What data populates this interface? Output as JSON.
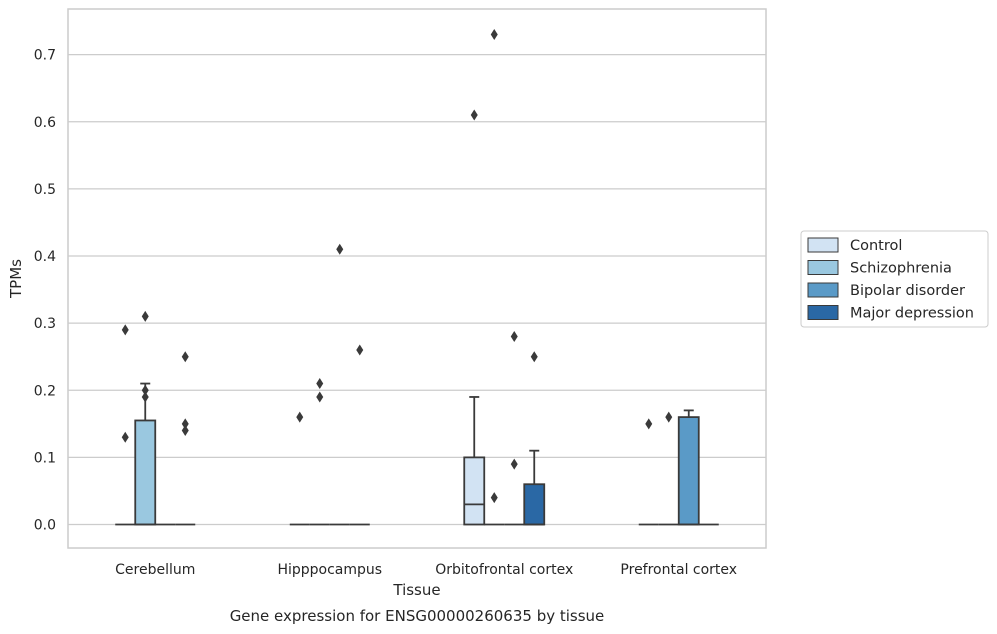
{
  "chart_data": {
    "type": "box",
    "title": "",
    "caption": "Gene expression for ENSG00000260635 by tissue",
    "xlabel": "Tissue",
    "ylabel": "TPMs",
    "ylim": [
      -0.035,
      0.768
    ],
    "yticks": [
      "0.0",
      "0.1",
      "0.2",
      "0.3",
      "0.4",
      "0.5",
      "0.6",
      "0.7"
    ],
    "grid": "horizontal",
    "legend_position": "right",
    "categories": [
      "Cerebellum",
      "Hipppocampus",
      "Orbitofrontal cortex",
      "Prefrontal cortex"
    ],
    "series": [
      {
        "name": "Control",
        "color": "#d2e3f3",
        "boxes": [
          {
            "category": "Cerebellum",
            "q1": 0,
            "median": 0,
            "q3": 0,
            "whisker_low": 0,
            "whisker_high": 0,
            "outliers": [
              0.29,
              0.13
            ]
          },
          {
            "category": "Hipppocampus",
            "q1": 0,
            "median": 0,
            "q3": 0,
            "whisker_low": 0,
            "whisker_high": 0,
            "outliers": [
              0.16
            ]
          },
          {
            "category": "Orbitofrontal cortex",
            "q1": 0,
            "median": 0.03,
            "q3": 0.1,
            "whisker_low": 0,
            "whisker_high": 0.19,
            "outliers": [
              0.61
            ]
          },
          {
            "category": "Prefrontal cortex",
            "q1": 0,
            "median": 0,
            "q3": 0,
            "whisker_low": 0,
            "whisker_high": 0,
            "outliers": [
              0.15
            ]
          }
        ]
      },
      {
        "name": "Schizophrenia",
        "color": "#9ac8e0",
        "boxes": [
          {
            "category": "Cerebellum",
            "q1": 0,
            "median": 0,
            "q3": 0.155,
            "whisker_low": 0,
            "whisker_high": 0.21,
            "outliers": [
              0.31,
              0.2,
              0.19
            ]
          },
          {
            "category": "Hipppocampus",
            "q1": 0,
            "median": 0,
            "q3": 0,
            "whisker_low": 0,
            "whisker_high": 0,
            "outliers": [
              0.21,
              0.19
            ]
          },
          {
            "category": "Orbitofrontal cortex",
            "q1": 0,
            "median": 0,
            "q3": 0,
            "whisker_low": 0,
            "whisker_high": 0,
            "outliers": [
              0.73,
              0.04
            ]
          },
          {
            "category": "Prefrontal cortex",
            "q1": 0,
            "median": 0,
            "q3": 0,
            "whisker_low": 0,
            "whisker_high": 0,
            "outliers": [
              0.16
            ]
          }
        ]
      },
      {
        "name": "Bipolar disorder",
        "color": "#5a9ac7",
        "boxes": [
          {
            "category": "Cerebellum",
            "q1": 0,
            "median": 0,
            "q3": 0,
            "whisker_low": 0,
            "whisker_high": 0,
            "outliers": []
          },
          {
            "category": "Hipppocampus",
            "q1": 0,
            "median": 0,
            "q3": 0,
            "whisker_low": 0,
            "whisker_high": 0,
            "outliers": [
              0.41
            ]
          },
          {
            "category": "Orbitofrontal cortex",
            "q1": 0,
            "median": 0,
            "q3": 0,
            "whisker_low": 0,
            "whisker_high": 0,
            "outliers": [
              0.28,
              0.09
            ]
          },
          {
            "category": "Prefrontal cortex",
            "q1": 0,
            "median": 0,
            "q3": 0.16,
            "whisker_low": 0,
            "whisker_high": 0.17,
            "outliers": []
          }
        ]
      },
      {
        "name": "Major depression",
        "color": "#2a68a5",
        "boxes": [
          {
            "category": "Cerebellum",
            "q1": 0,
            "median": 0,
            "q3": 0,
            "whisker_low": 0,
            "whisker_high": 0,
            "outliers": [
              0.25,
              0.15,
              0.14
            ]
          },
          {
            "category": "Hipppocampus",
            "q1": 0,
            "median": 0,
            "q3": 0,
            "whisker_low": 0,
            "whisker_high": 0,
            "outliers": [
              0.26
            ]
          },
          {
            "category": "Orbitofrontal cortex",
            "q1": 0,
            "median": 0,
            "q3": 0.06,
            "whisker_low": 0,
            "whisker_high": 0.11,
            "outliers": [
              0.25
            ]
          },
          {
            "category": "Prefrontal cortex",
            "q1": 0,
            "median": 0,
            "q3": 0,
            "whisker_low": 0,
            "whisker_high": 0,
            "outliers": []
          }
        ]
      }
    ]
  }
}
